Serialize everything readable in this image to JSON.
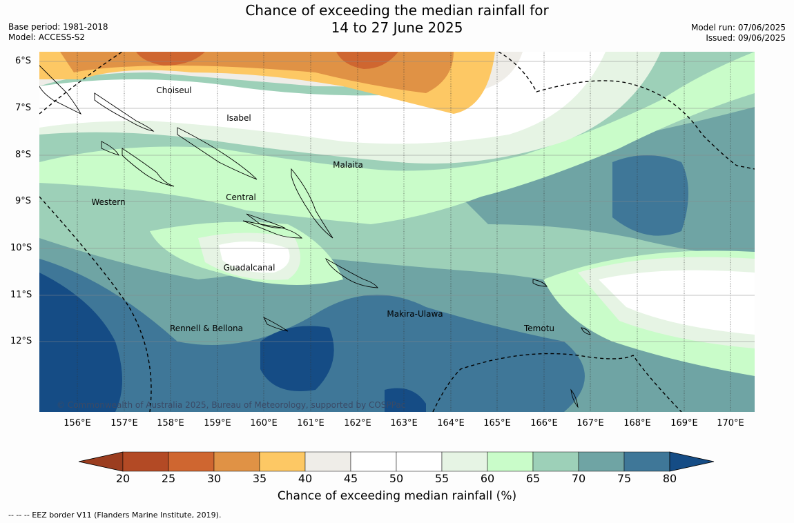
{
  "title": {
    "line1": "Chance of exceeding the median rainfall for",
    "line2": "14 to 27 June 2025"
  },
  "meta_left": {
    "base_period": "Base period: 1981-2018",
    "model": "Model: ACCESS-S2"
  },
  "meta_right": {
    "model_run": "Model run: 07/06/2025",
    "issued": "Issued: 09/06/2025"
  },
  "lat_labels": [
    "6°S",
    "7°S",
    "8°S",
    "9°S",
    "10°S",
    "11°S",
    "12°S"
  ],
  "lon_labels": [
    "156°E",
    "157°E",
    "158°E",
    "159°E",
    "160°E",
    "161°E",
    "162°E",
    "163°E",
    "164°E",
    "165°E",
    "166°E",
    "167°E",
    "168°E",
    "169°E",
    "170°E"
  ],
  "regions": {
    "choiseul": "Choiseul",
    "isabel": "Isabel",
    "malaita": "Malaita",
    "western": "Western",
    "central": "Central",
    "guadalcanal": "Guadalcanal",
    "rennell": "Rennell & Bellona",
    "makira": "Makira-Ulawa",
    "temotu": "Temotu"
  },
  "copyright": "© Commonwealth of Australia 2025, Bureau of Meteorology, supported by COSPPac",
  "colorbar": {
    "ticks": [
      "20",
      "25",
      "30",
      "35",
      "40",
      "45",
      "50",
      "55",
      "60",
      "65",
      "70",
      "75",
      "80"
    ],
    "colors": [
      "#9b3d1f",
      "#b34a25",
      "#cf6630",
      "#e09245",
      "#fdc864",
      "#efede8",
      "#ffffff",
      "#ffffff",
      "#e6f4e4",
      "#c9fcc9",
      "#9dd0b8",
      "#6fa4a4",
      "#3f7798",
      "#154c85"
    ],
    "label": "Chance of exceeding median rainfall (%)"
  },
  "footnote": "-- -- -- EEZ border V11 (Flanders Marine Institute, 2019)."
}
